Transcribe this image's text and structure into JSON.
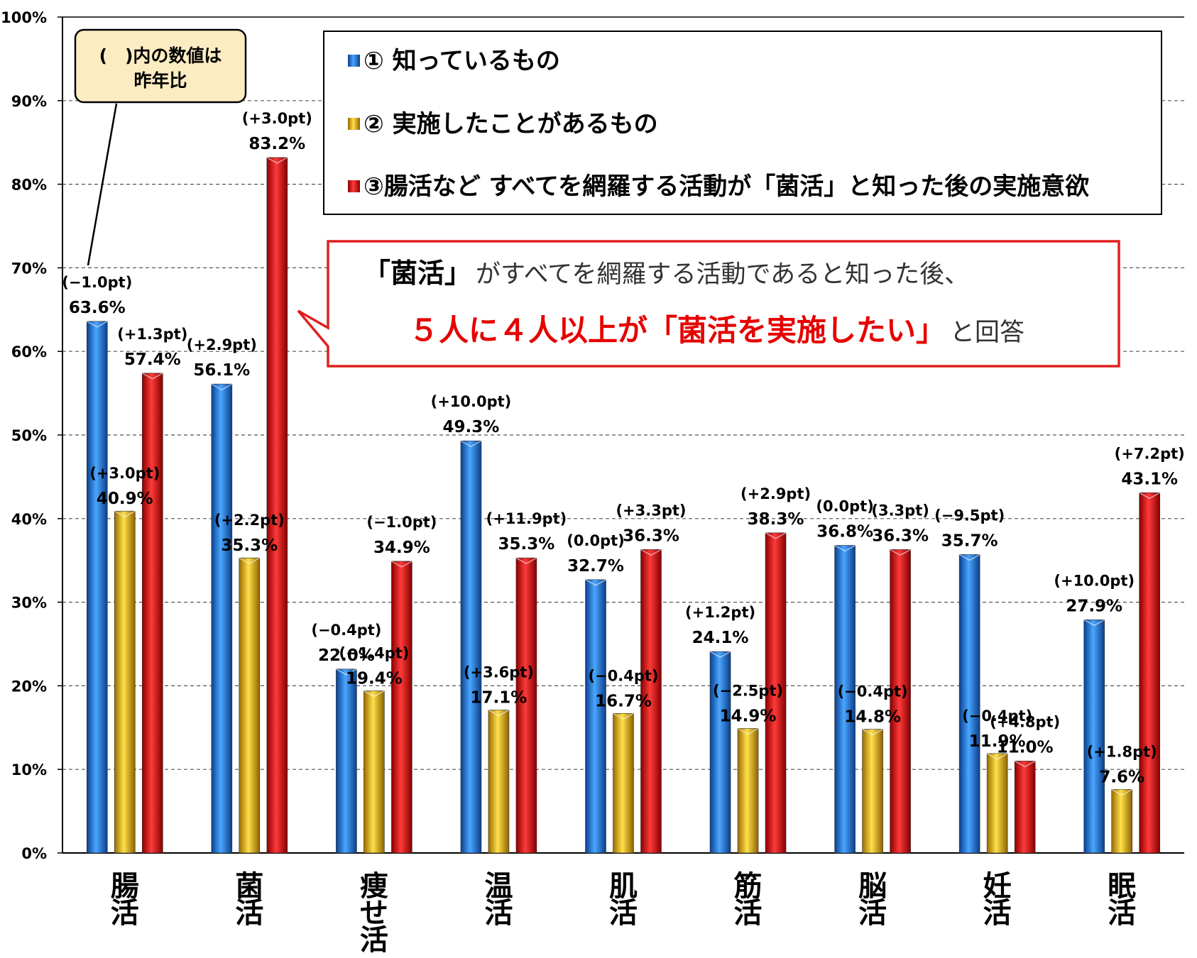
{
  "colors": {
    "blue": "#1f6fd6",
    "gold": "#e8b10a",
    "red": "#e01010",
    "note_bg": "#fcecc2",
    "callout_border": "#e02020",
    "callout_emphasis": "#e60000"
  },
  "legend": {
    "item1": "① 知っているもの",
    "item2": "② 実施したことがあるもの",
    "item3": "③腸活など すべてを網羅する活動が「菌活」と知った後の実施意欲"
  },
  "note": {
    "line1": "(　)内の数値は",
    "line2": "昨年比"
  },
  "callout": {
    "line1_bold": "「菌活」",
    "line1_rest": "がすべてを網羅する活動であると知った後、",
    "line2_red": "５人に４人以上が「菌活を実施したい」",
    "line2_rest": "と回答"
  },
  "chart_data": {
    "type": "bar",
    "y_unit": "%",
    "ylim": [
      0,
      100
    ],
    "y_ticks": [
      "0%",
      "10%",
      "20%",
      "30%",
      "40%",
      "50%",
      "60%",
      "70%",
      "80%",
      "90%",
      "100%"
    ],
    "grid": true,
    "categories": [
      "腸活",
      "菌活",
      "痩せ活",
      "温活",
      "肌活",
      "筋活",
      "脳活",
      "妊活",
      "眠活"
    ],
    "series": [
      {
        "name": "① 知っているもの",
        "values": [
          63.6,
          56.1,
          22.0,
          49.3,
          32.7,
          24.1,
          36.8,
          35.7,
          27.9
        ],
        "labels": [
          "63.6%",
          "56.1%",
          "22.0%",
          "49.3%",
          "32.7%",
          "24.1%",
          "36.8%",
          "35.7%",
          "27.9%"
        ],
        "changes": [
          "(−1.0pt)",
          "(+2.9pt)",
          "(−0.4pt)",
          "(+10.0pt)",
          "(0.0pt)",
          "(+1.2pt)",
          "(0.0pt)",
          "(−9.5pt)",
          "(+10.0pt)"
        ]
      },
      {
        "name": "② 実施したことがあるもの",
        "values": [
          40.9,
          35.3,
          19.4,
          17.1,
          16.7,
          14.9,
          14.8,
          11.9,
          7.6
        ],
        "labels": [
          "40.9%",
          "35.3%",
          "19.4%",
          "17.1%",
          "16.7%",
          "14.9%",
          "14.8%",
          "11.9%",
          "7.6%"
        ],
        "changes": [
          "(+3.0pt)",
          "(+2.2pt)",
          "(−1.4pt)",
          "(+3.6pt)",
          "(−0.4pt)",
          "(−2.5pt)",
          "(−0.4pt)",
          "(−0.4pt)",
          "(+1.8pt)"
        ]
      },
      {
        "name": "③腸活など すべてを網羅する活動が「菌活」と知った後の実施意欲",
        "values": [
          57.4,
          83.2,
          34.9,
          35.3,
          36.3,
          38.3,
          36.3,
          11.0,
          43.1
        ],
        "labels": [
          "57.4%",
          "83.2%",
          "34.9%",
          "35.3%",
          "36.3%",
          "38.3%",
          "36.3%",
          "11.0%",
          "43.1%"
        ],
        "changes": [
          "(+1.3pt)",
          "(+3.0pt)",
          "(−1.0pt)",
          "(+11.9pt)",
          "(+3.3pt)",
          "(+2.9pt)",
          "(3.3pt)",
          "(+4.8pt)",
          "(+7.2pt)"
        ]
      }
    ]
  }
}
